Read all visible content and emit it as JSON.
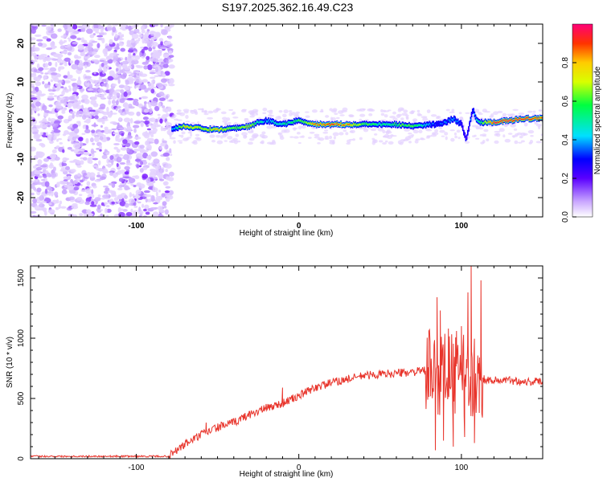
{
  "title": "S197.2025.362.16.49.C23",
  "chart_data": [
    {
      "type": "heatmap",
      "xlabel": "Height of straight line (km)",
      "ylabel": "Frequency (Hz)",
      "xlim": [
        -165,
        150
      ],
      "ylim": [
        -25,
        25
      ],
      "x_ticks": [
        -100,
        0,
        100
      ],
      "y_ticks": [
        -20,
        -10,
        0,
        10,
        20
      ],
      "noise_region": {
        "x_from": -165,
        "x_to": -78,
        "note": "scattered low-amplitude points across full band"
      },
      "ridge": {
        "x": [
          -78,
          -70,
          -60,
          -50,
          -40,
          -30,
          -25,
          -20,
          -10,
          0,
          10,
          20,
          30,
          40,
          50,
          60,
          70,
          80,
          85,
          90,
          95,
          100,
          103,
          107,
          110,
          120,
          130,
          140,
          150
        ],
        "freq": [
          -2,
          -1.5,
          -2,
          -2.5,
          -2,
          -1.5,
          -0.5,
          0,
          -1,
          0,
          -1,
          -1,
          -1,
          -1,
          -1,
          -1,
          -1.5,
          -1,
          -1,
          -0.5,
          0.5,
          -1,
          -5,
          3,
          -0.5,
          -0.5,
          0,
          0.5,
          0.5
        ],
        "amplitude": [
          0.35,
          0.8,
          0.7,
          0.8,
          0.6,
          0.75,
          0.5,
          0.4,
          0.5,
          0.6,
          0.85,
          0.9,
          0.85,
          0.6,
          0.55,
          0.6,
          0.65,
          0.4,
          0.3,
          0.35,
          0.4,
          0.3,
          0.25,
          0.35,
          0.5,
          0.95,
          0.95,
          0.95,
          0.9
        ]
      },
      "colorbar": {
        "label": "Normalized spectral amplitude",
        "range": [
          0,
          1
        ],
        "ticks": [
          "0.0",
          "0.2",
          "0.4",
          "0.6",
          "0.8"
        ]
      }
    },
    {
      "type": "line",
      "xlabel": "Height of straight line (km)",
      "ylabel": "SNR (10 * v/v)",
      "xlim": [
        -165,
        150
      ],
      "ylim": [
        0,
        1600
      ],
      "x_ticks": [
        -100,
        0,
        100
      ],
      "y_ticks": [
        0,
        500,
        1000,
        1500
      ],
      "color": "#e8342b",
      "anchors": {
        "x": [
          -165,
          -80,
          -70,
          -60,
          -50,
          -40,
          -30,
          -20,
          -10,
          0,
          10,
          20,
          30,
          40,
          50,
          60,
          70,
          78,
          113,
          120,
          130,
          140,
          150
        ],
        "y": [
          20,
          20,
          120,
          200,
          260,
          300,
          370,
          420,
          460,
          520,
          590,
          630,
          660,
          690,
          700,
          710,
          720,
          730,
          660,
          650,
          650,
          640,
          640
        ]
      },
      "spikes": [
        {
          "x": -57,
          "y": 300
        },
        {
          "x": -10,
          "y": 590
        },
        {
          "x": 2,
          "y": 560
        },
        {
          "x": 80,
          "y": 1060
        },
        {
          "x": 85,
          "y": 1340
        },
        {
          "x": 87,
          "y": 1230
        },
        {
          "x": 92,
          "y": 1080
        },
        {
          "x": 97,
          "y": 1060
        },
        {
          "x": 100,
          "y": 1100
        },
        {
          "x": 104,
          "y": 1380
        },
        {
          "x": 106,
          "y": 1600
        },
        {
          "x": 112,
          "y": 1480
        }
      ],
      "dips": [
        {
          "x": 84,
          "y": 70
        },
        {
          "x": 89,
          "y": 150
        },
        {
          "x": 95,
          "y": 100
        },
        {
          "x": 102,
          "y": 180
        },
        {
          "x": 108,
          "y": 130
        },
        {
          "x": 111,
          "y": 380
        }
      ]
    }
  ]
}
